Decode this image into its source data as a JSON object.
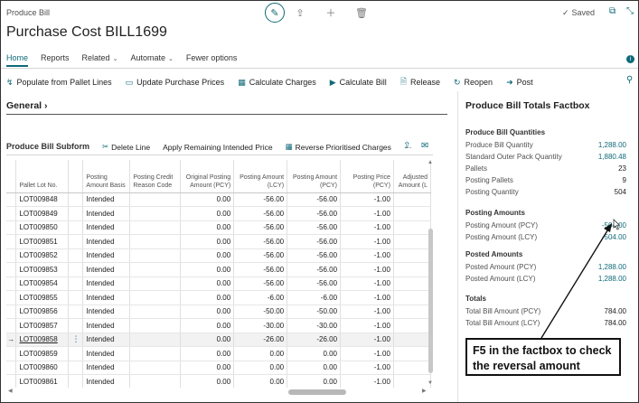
{
  "app_title": "Produce Bill",
  "page_title": "Purchase Cost BILL1699",
  "status": {
    "saved_label": "Saved"
  },
  "icons": {
    "edit": "pencil-icon",
    "share": "share-icon",
    "new": "plus-icon",
    "delete": "trash-icon",
    "open_new_window": "open-new-window-icon",
    "collapse": "collapse-icon"
  },
  "tabs": [
    {
      "label": "Home",
      "active": true
    },
    {
      "label": "Reports"
    },
    {
      "label": "Related"
    },
    {
      "label": "Automate"
    },
    {
      "label": "Fewer options"
    }
  ],
  "actions": [
    {
      "label": "Populate from Pallet Lines",
      "icon": "list-icon"
    },
    {
      "label": "Update Purchase Prices",
      "icon": "price-tag-icon"
    },
    {
      "label": "Calculate Charges",
      "icon": "calculator-icon"
    },
    {
      "label": "Calculate Bill",
      "icon": "play-icon"
    },
    {
      "label": "Release",
      "icon": "document-icon"
    },
    {
      "label": "Reopen",
      "icon": "reopen-icon"
    },
    {
      "label": "Post",
      "icon": "arrow-right-icon"
    }
  ],
  "general": {
    "label": "General"
  },
  "subform": {
    "title": "Produce Bill Subform",
    "actions": [
      {
        "label": "Delete Line",
        "icon": "delete-line-icon"
      },
      {
        "label": "Apply Remaining Intended Price",
        "icon": ""
      },
      {
        "label": "Reverse Prioritised Charges",
        "icon": "reverse-icon"
      },
      {
        "label": "···",
        "icon": "more-icon"
      }
    ],
    "columns": [
      "Pallet Lot No.",
      "Posting Amount Basis",
      "Posting Credit Reason Code",
      "Original Posting Amount (PCY)",
      "Posting Amount (LCY)",
      "Posting Amount (PCY)",
      "Posting Price (PCY)",
      "Adjusted Amount (L"
    ],
    "rows": [
      {
        "lot": "LOT009848",
        "basis": "Intended",
        "reason": "",
        "orig": "0.00",
        "lcy": "-56.00",
        "pcy": "-56.00",
        "price": "-1.00"
      },
      {
        "lot": "LOT009849",
        "basis": "Intended",
        "reason": "",
        "orig": "0.00",
        "lcy": "-56.00",
        "pcy": "-56.00",
        "price": "-1.00"
      },
      {
        "lot": "LOT009850",
        "basis": "Intended",
        "reason": "",
        "orig": "0.00",
        "lcy": "-56.00",
        "pcy": "-56.00",
        "price": "-1.00"
      },
      {
        "lot": "LOT009851",
        "basis": "Intended",
        "reason": "",
        "orig": "0.00",
        "lcy": "-56.00",
        "pcy": "-56.00",
        "price": "-1.00"
      },
      {
        "lot": "LOT009852",
        "basis": "Intended",
        "reason": "",
        "orig": "0.00",
        "lcy": "-56.00",
        "pcy": "-56.00",
        "price": "-1.00"
      },
      {
        "lot": "LOT009853",
        "basis": "Intended",
        "reason": "",
        "orig": "0.00",
        "lcy": "-56.00",
        "pcy": "-56.00",
        "price": "-1.00"
      },
      {
        "lot": "LOT009854",
        "basis": "Intended",
        "reason": "",
        "orig": "0.00",
        "lcy": "-56.00",
        "pcy": "-56.00",
        "price": "-1.00"
      },
      {
        "lot": "LOT009855",
        "basis": "Intended",
        "reason": "",
        "orig": "0.00",
        "lcy": "-6.00",
        "pcy": "-6.00",
        "price": "-1.00"
      },
      {
        "lot": "LOT009856",
        "basis": "Intended",
        "reason": "",
        "orig": "0.00",
        "lcy": "-50.00",
        "pcy": "-50.00",
        "price": "-1.00"
      },
      {
        "lot": "LOT009857",
        "basis": "Intended",
        "reason": "",
        "orig": "0.00",
        "lcy": "-30.00",
        "pcy": "-30.00",
        "price": "-1.00"
      },
      {
        "lot": "LOT009858",
        "basis": "Intended",
        "reason": "",
        "orig": "0.00",
        "lcy": "-26.00",
        "pcy": "-26.00",
        "price": "-1.00",
        "selected": true
      },
      {
        "lot": "LOT009859",
        "basis": "Intended",
        "reason": "",
        "orig": "0.00",
        "lcy": "0.00",
        "pcy": "0.00",
        "price": "-1.00"
      },
      {
        "lot": "LOT009860",
        "basis": "Intended",
        "reason": "",
        "orig": "0.00",
        "lcy": "0.00",
        "pcy": "0.00",
        "price": "-1.00"
      },
      {
        "lot": "LOT009861",
        "basis": "Intended",
        "reason": "",
        "orig": "0.00",
        "lcy": "0.00",
        "pcy": "0.00",
        "price": "-1.00"
      }
    ]
  },
  "factbox": {
    "title": "Produce Bill Totals Factbox",
    "sections": [
      {
        "heading": "Produce Bill Quantities",
        "rows": [
          {
            "label": "Produce Bill Quantity",
            "value": "1,288.00",
            "link": true
          },
          {
            "label": "Standard Outer Pack Quantity",
            "value": "1,880.48",
            "link": true
          },
          {
            "label": "Pallets",
            "value": "23",
            "link": false
          },
          {
            "label": "Posting Pallets",
            "value": "9",
            "link": false
          },
          {
            "label": "Posting Quantity",
            "value": "504",
            "link": false
          }
        ]
      },
      {
        "heading": "Posting Amounts",
        "rows": [
          {
            "label": "Posting Amount (PCY)",
            "value": "-504.00",
            "link": true
          },
          {
            "label": "Posting Amount (LCY)",
            "value": "-504.00",
            "link": true
          }
        ]
      },
      {
        "heading": "Posted Amounts",
        "rows": [
          {
            "label": "Posted Amount (PCY)",
            "value": "1,288.00",
            "link": true
          },
          {
            "label": "Posted Amount (LCY)",
            "value": "1,288.00",
            "link": true
          }
        ]
      },
      {
        "heading": "Totals",
        "rows": [
          {
            "label": "Total Bill Amount (PCY)",
            "value": "784.00",
            "link": false
          },
          {
            "label": "Total Bill Amount (LCY)",
            "value": "784.00",
            "link": false
          }
        ]
      }
    ]
  },
  "callout": {
    "text": "F5 in the factbox to check the reversal amount"
  },
  "colors": {
    "accent": "#0f6a78",
    "text": "#212121",
    "muted": "#505050"
  }
}
